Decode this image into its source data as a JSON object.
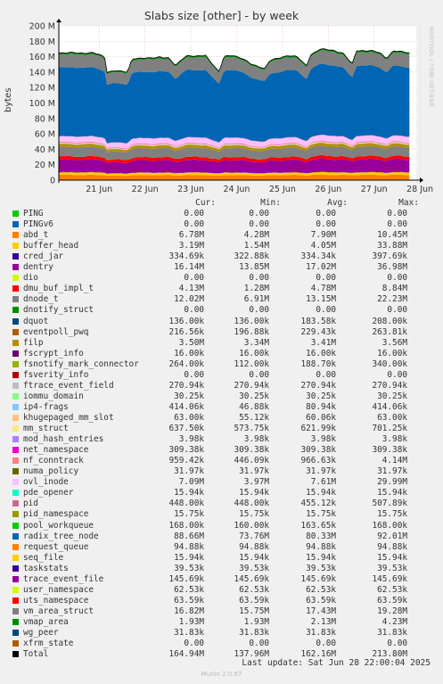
{
  "chart_data": {
    "type": "area",
    "title": "Slabs size [other] - by week",
    "ylabel": "bytes",
    "watermark": "RRDTOOL / TOBI OETIKER",
    "ylim": [
      0,
      200
    ],
    "y_unit": "M",
    "y_ticks": [
      "0",
      "20 M",
      "40 M",
      "60 M",
      "80 M",
      "100 M",
      "120 M",
      "140 M",
      "160 M",
      "180 M",
      "200 M"
    ],
    "x_ticks": [
      "21 Jun",
      "22 Jun",
      "23 Jun",
      "24 Jun",
      "25 Jun",
      "26 Jun",
      "27 Jun",
      "28 Jun"
    ],
    "total_profile": {
      "x_days": [
        0,
        0.75,
        1.0,
        1.05,
        1.2,
        1.5,
        1.6,
        2.0,
        2.2,
        2.4,
        2.55,
        2.7,
        2.8,
        3.0,
        3.2,
        3.5,
        3.6,
        3.8,
        4.0,
        4.2,
        4.5,
        4.6,
        4.8,
        5.0,
        5.2,
        5.4,
        5.5,
        5.7,
        6.0,
        6.2,
        6.4,
        6.5,
        6.8,
        7.0,
        7.15,
        7.3,
        7.5,
        7.65
      ],
      "y_m": [
        165,
        165,
        160,
        140,
        142,
        140,
        158,
        158,
        160,
        158,
        148,
        158,
        162,
        160,
        162,
        140,
        160,
        162,
        158,
        150,
        145,
        155,
        158,
        162,
        160,
        148,
        163,
        170,
        168,
        165,
        150,
        168,
        168,
        165,
        158,
        168,
        166,
        165
      ]
    },
    "series": [
      {
        "name": "PING",
        "color": "#00cc00",
        "cur": "0.00",
        "min": "0.00",
        "avg": "0.00",
        "max": "0.00"
      },
      {
        "name": "PINGv6",
        "color": "#0066b3",
        "cur": "0.00",
        "min": "0.00",
        "avg": "0.00",
        "max": "0.00"
      },
      {
        "name": "abd_t",
        "color": "#ff8000",
        "cur": "6.78M",
        "min": "4.28M",
        "avg": "7.90M",
        "max": "10.45M"
      },
      {
        "name": "buffer_head",
        "color": "#ffcc00",
        "cur": "3.19M",
        "min": "1.54M",
        "avg": "4.05M",
        "max": "33.88M"
      },
      {
        "name": "cred_jar",
        "color": "#330099",
        "cur": "334.69k",
        "min": "322.88k",
        "avg": "334.34k",
        "max": "397.69k"
      },
      {
        "name": "dentry",
        "color": "#990099",
        "cur": "16.14M",
        "min": "13.85M",
        "avg": "17.02M",
        "max": "36.98M"
      },
      {
        "name": "dio",
        "color": "#ccff00",
        "cur": "0.00",
        "min": "0.00",
        "avg": "0.00",
        "max": "0.00"
      },
      {
        "name": "dmu_buf_impl_t",
        "color": "#ff0000",
        "cur": "4.13M",
        "min": "1.28M",
        "avg": "4.78M",
        "max": "8.84M"
      },
      {
        "name": "dnode_t",
        "color": "#808080",
        "cur": "12.02M",
        "min": "6.91M",
        "avg": "13.15M",
        "max": "22.23M"
      },
      {
        "name": "dnotify_struct",
        "color": "#008f00",
        "cur": "0.00",
        "min": "0.00",
        "avg": "0.00",
        "max": "0.00"
      },
      {
        "name": "dquot",
        "color": "#00487d",
        "cur": "136.00k",
        "min": "136.00k",
        "avg": "183.58k",
        "max": "208.00k"
      },
      {
        "name": "eventpoll_pwq",
        "color": "#b35a00",
        "cur": "216.56k",
        "min": "196.88k",
        "avg": "229.43k",
        "max": "263.81k"
      },
      {
        "name": "filp",
        "color": "#b38f00",
        "cur": "3.50M",
        "min": "3.34M",
        "avg": "3.41M",
        "max": "3.56M"
      },
      {
        "name": "fscrypt_info",
        "color": "#6b006b",
        "cur": "16.00k",
        "min": "16.00k",
        "avg": "16.00k",
        "max": "16.00k"
      },
      {
        "name": "fsnotify_mark_connector",
        "color": "#8fb300",
        "cur": "264.00k",
        "min": "112.00k",
        "avg": "188.70k",
        "max": "340.00k"
      },
      {
        "name": "fsverity_info",
        "color": "#b30000",
        "cur": "0.00",
        "min": "0.00",
        "avg": "0.00",
        "max": "0.00"
      },
      {
        "name": "ftrace_event_field",
        "color": "#bebebe",
        "cur": "270.94k",
        "min": "270.94k",
        "avg": "270.94k",
        "max": "270.94k"
      },
      {
        "name": "iommu_domain",
        "color": "#80ff80",
        "cur": "30.25k",
        "min": "30.25k",
        "avg": "30.25k",
        "max": "30.25k"
      },
      {
        "name": "ip4-frags",
        "color": "#80c9ff",
        "cur": "414.06k",
        "min": "46.88k",
        "avg": "80.94k",
        "max": "414.06k"
      },
      {
        "name": "khugepaged_mm_slot",
        "color": "#ffc080",
        "cur": "63.00k",
        "min": "55.12k",
        "avg": "60.06k",
        "max": "63.00k"
      },
      {
        "name": "mm_struct",
        "color": "#ffe680",
        "cur": "637.50k",
        "min": "573.75k",
        "avg": "621.99k",
        "max": "701.25k"
      },
      {
        "name": "mod_hash_entries",
        "color": "#aa80ff",
        "cur": "3.98k",
        "min": "3.98k",
        "avg": "3.98k",
        "max": "3.98k"
      },
      {
        "name": "net_namespace",
        "color": "#ee00cc",
        "cur": "309.38k",
        "min": "309.38k",
        "avg": "309.38k",
        "max": "309.38k"
      },
      {
        "name": "nf_conntrack",
        "color": "#ff8080",
        "cur": "959.42k",
        "min": "446.09k",
        "avg": "966.63k",
        "max": "4.14M"
      },
      {
        "name": "numa_policy",
        "color": "#666600",
        "cur": "31.97k",
        "min": "31.97k",
        "avg": "31.97k",
        "max": "31.97k"
      },
      {
        "name": "ovl_inode",
        "color": "#ffbfff",
        "cur": "7.09M",
        "min": "3.97M",
        "avg": "7.61M",
        "max": "29.99M"
      },
      {
        "name": "pde_opener",
        "color": "#00ffcc",
        "cur": "15.94k",
        "min": "15.94k",
        "avg": "15.94k",
        "max": "15.94k"
      },
      {
        "name": "pid",
        "color": "#cc6699",
        "cur": "448.00k",
        "min": "448.00k",
        "avg": "455.12k",
        "max": "507.89k"
      },
      {
        "name": "pid_namespace",
        "color": "#999900",
        "cur": "15.75k",
        "min": "15.75k",
        "avg": "15.75k",
        "max": "15.75k"
      },
      {
        "name": "pool_workqueue",
        "color": "#00cc00",
        "cur": "168.00k",
        "min": "160.00k",
        "avg": "163.65k",
        "max": "168.00k"
      },
      {
        "name": "radix_tree_node",
        "color": "#0066b3",
        "cur": "88.66M",
        "min": "73.76M",
        "avg": "80.33M",
        "max": "92.01M"
      },
      {
        "name": "request_queue",
        "color": "#ff8000",
        "cur": "94.88k",
        "min": "94.88k",
        "avg": "94.88k",
        "max": "94.88k"
      },
      {
        "name": "seq_file",
        "color": "#ffcc00",
        "cur": "15.94k",
        "min": "15.94k",
        "avg": "15.94k",
        "max": "15.94k"
      },
      {
        "name": "taskstats",
        "color": "#330099",
        "cur": "39.53k",
        "min": "39.53k",
        "avg": "39.53k",
        "max": "39.53k"
      },
      {
        "name": "trace_event_file",
        "color": "#990099",
        "cur": "145.69k",
        "min": "145.69k",
        "avg": "145.69k",
        "max": "145.69k"
      },
      {
        "name": "user_namespace",
        "color": "#ccff00",
        "cur": "62.53k",
        "min": "62.53k",
        "avg": "62.53k",
        "max": "62.53k"
      },
      {
        "name": "uts_namespace",
        "color": "#ff0000",
        "cur": "63.59k",
        "min": "63.59k",
        "avg": "63.59k",
        "max": "63.59k"
      },
      {
        "name": "vm_area_struct",
        "color": "#808080",
        "cur": "16.82M",
        "min": "15.75M",
        "avg": "17.43M",
        "max": "19.28M"
      },
      {
        "name": "vmap_area",
        "color": "#008f00",
        "cur": "1.93M",
        "min": "1.93M",
        "avg": "2.13M",
        "max": "4.23M"
      },
      {
        "name": "wg_peer",
        "color": "#00487d",
        "cur": "31.83k",
        "min": "31.83k",
        "avg": "31.83k",
        "max": "31.83k"
      },
      {
        "name": "xfrm_state",
        "color": "#b35a00",
        "cur": "0.00",
        "min": "0.00",
        "avg": "0.00",
        "max": "0.00"
      }
    ],
    "total": {
      "name": "Total",
      "color": "#000000",
      "cur": "164.94M",
      "min": "137.96M",
      "avg": "162.16M",
      "max": "213.80M"
    }
  },
  "legend_headers": {
    "cur": "Cur:",
    "min": "Min:",
    "avg": "Avg:",
    "max": "Max:"
  },
  "last_update": "Last update: Sat Jun 28 22:00:04 2025",
  "footer": "Munin 2.0.67"
}
